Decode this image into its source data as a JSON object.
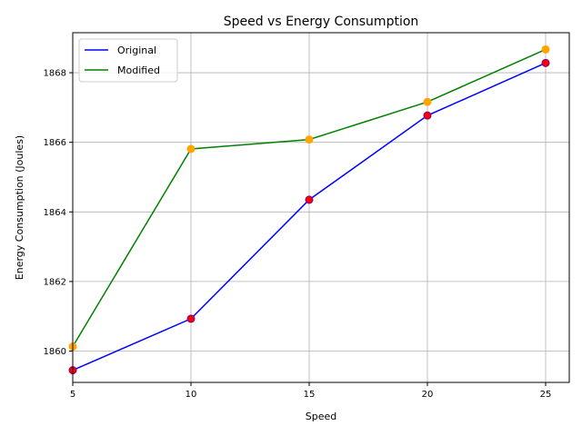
{
  "chart_data": {
    "type": "line",
    "title": "Speed vs Energy Consumption",
    "xlabel": "Speed",
    "ylabel": "Energy Consumption (Joules)",
    "x": [
      5,
      10,
      15,
      20,
      25
    ],
    "xlim": [
      5,
      26
    ],
    "ylim": [
      1859.1,
      1869.15
    ],
    "xticks": [
      5,
      10,
      15,
      20,
      25
    ],
    "yticks": [
      1860,
      1862,
      1864,
      1866,
      1868
    ],
    "grid": true,
    "legend_position": "upper-left",
    "series": [
      {
        "name": "Original",
        "line_color": "#0000ff",
        "marker_color": "#ff0000",
        "marker_edge": "#800080",
        "values": [
          1859.45,
          1860.93,
          1864.35,
          1866.77,
          1868.28
        ]
      },
      {
        "name": "Modified",
        "line_color": "#008000",
        "marker_color": "#ffa500",
        "marker_edge": "#ffa500",
        "values": [
          1860.13,
          1865.81,
          1866.08,
          1867.16,
          1868.67
        ]
      }
    ]
  }
}
